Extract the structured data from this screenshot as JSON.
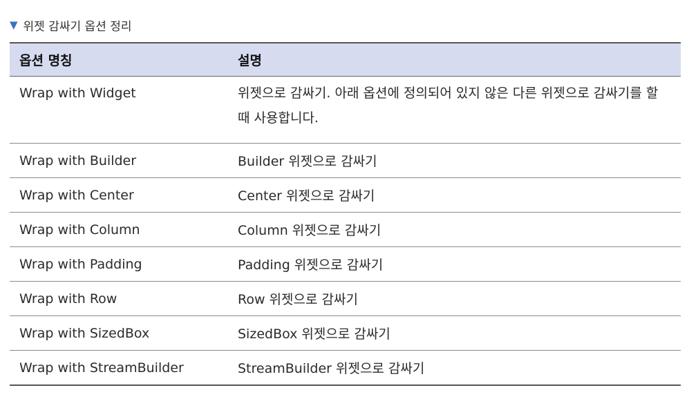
{
  "caption": {
    "marker_icon": "down-triangle-icon",
    "text": "위젯 감싸기 옵션 정리"
  },
  "table": {
    "headers": [
      "옵션 명칭",
      "설명"
    ],
    "rows": [
      {
        "name": "Wrap with Widget",
        "desc": "위젯으로 감싸기. 아래 옵션에 정의되어 있지 않은 다른 위젯으로 감싸기를 할 때 사용합니다."
      },
      {
        "name": "Wrap with Builder",
        "desc": "Builder 위젯으로 감싸기"
      },
      {
        "name": "Wrap with Center",
        "desc": "Center 위젯으로 감싸기"
      },
      {
        "name": "Wrap with Column",
        "desc": "Column 위젯으로 감싸기"
      },
      {
        "name": "Wrap with Padding",
        "desc": "Padding 위젯으로 감싸기"
      },
      {
        "name": "Wrap with Row",
        "desc": "Row 위젯으로 감싸기"
      },
      {
        "name": "Wrap with SizedBox",
        "desc": "SizedBox 위젯으로 감싸기"
      },
      {
        "name": "Wrap with StreamBuilder",
        "desc": "StreamBuilder 위젯으로 감싸기"
      }
    ]
  },
  "colors": {
    "header_bg": "#d6dbef",
    "marker": "#3a6fc4"
  }
}
